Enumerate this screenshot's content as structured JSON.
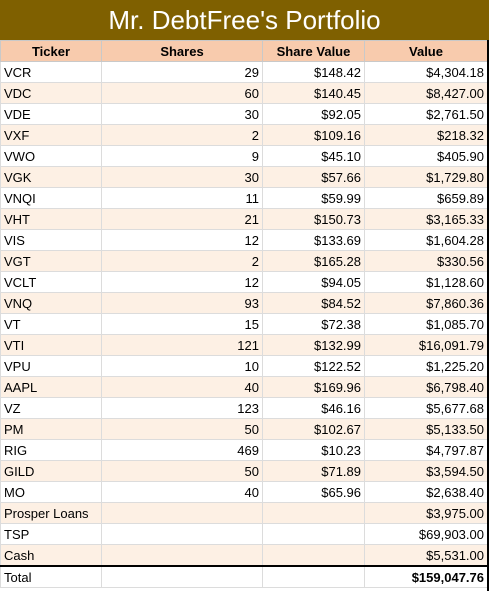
{
  "title": "Mr. DebtFree's Portfolio",
  "columns": [
    "Ticker",
    "Shares",
    "Share Value",
    "Value"
  ],
  "rows": [
    {
      "ticker": "VCR",
      "shares": "29",
      "share_value": "$148.42",
      "value": "$4,304.18"
    },
    {
      "ticker": "VDC",
      "shares": "60",
      "share_value": "$140.45",
      "value": "$8,427.00"
    },
    {
      "ticker": "VDE",
      "shares": "30",
      "share_value": "$92.05",
      "value": "$2,761.50"
    },
    {
      "ticker": "VXF",
      "shares": "2",
      "share_value": "$109.16",
      "value": "$218.32"
    },
    {
      "ticker": "VWO",
      "shares": "9",
      "share_value": "$45.10",
      "value": "$405.90"
    },
    {
      "ticker": "VGK",
      "shares": "30",
      "share_value": "$57.66",
      "value": "$1,729.80"
    },
    {
      "ticker": "VNQI",
      "shares": "11",
      "share_value": "$59.99",
      "value": "$659.89"
    },
    {
      "ticker": "VHT",
      "shares": "21",
      "share_value": "$150.73",
      "value": "$3,165.33"
    },
    {
      "ticker": "VIS",
      "shares": "12",
      "share_value": "$133.69",
      "value": "$1,604.28"
    },
    {
      "ticker": "VGT",
      "shares": "2",
      "share_value": "$165.28",
      "value": "$330.56"
    },
    {
      "ticker": "VCLT",
      "shares": "12",
      "share_value": "$94.05",
      "value": "$1,128.60"
    },
    {
      "ticker": "VNQ",
      "shares": "93",
      "share_value": "$84.52",
      "value": "$7,860.36"
    },
    {
      "ticker": "VT",
      "shares": "15",
      "share_value": "$72.38",
      "value": "$1,085.70"
    },
    {
      "ticker": "VTI",
      "shares": "121",
      "share_value": "$132.99",
      "value": "$16,091.79"
    },
    {
      "ticker": "VPU",
      "shares": "10",
      "share_value": "$122.52",
      "value": "$1,225.20"
    },
    {
      "ticker": "AAPL",
      "shares": "40",
      "share_value": "$169.96",
      "value": "$6,798.40"
    },
    {
      "ticker": "VZ",
      "shares": "123",
      "share_value": "$46.16",
      "value": "$5,677.68"
    },
    {
      "ticker": "PM",
      "shares": "50",
      "share_value": "$102.67",
      "value": "$5,133.50"
    },
    {
      "ticker": "RIG",
      "shares": "469",
      "share_value": "$10.23",
      "value": "$4,797.87"
    },
    {
      "ticker": "GILD",
      "shares": "50",
      "share_value": "$71.89",
      "value": "$3,594.50"
    },
    {
      "ticker": "MO",
      "shares": "40",
      "share_value": "$65.96",
      "value": "$2,638.40"
    },
    {
      "ticker": "Prosper Loans",
      "shares": "",
      "share_value": "",
      "value": "$3,975.00"
    },
    {
      "ticker": "TSP",
      "shares": "",
      "share_value": "",
      "value": "$69,903.00"
    },
    {
      "ticker": "Cash",
      "shares": "",
      "share_value": "",
      "value": "$5,531.00"
    }
  ],
  "total": {
    "label": "Total",
    "value": "$159,047.76"
  }
}
